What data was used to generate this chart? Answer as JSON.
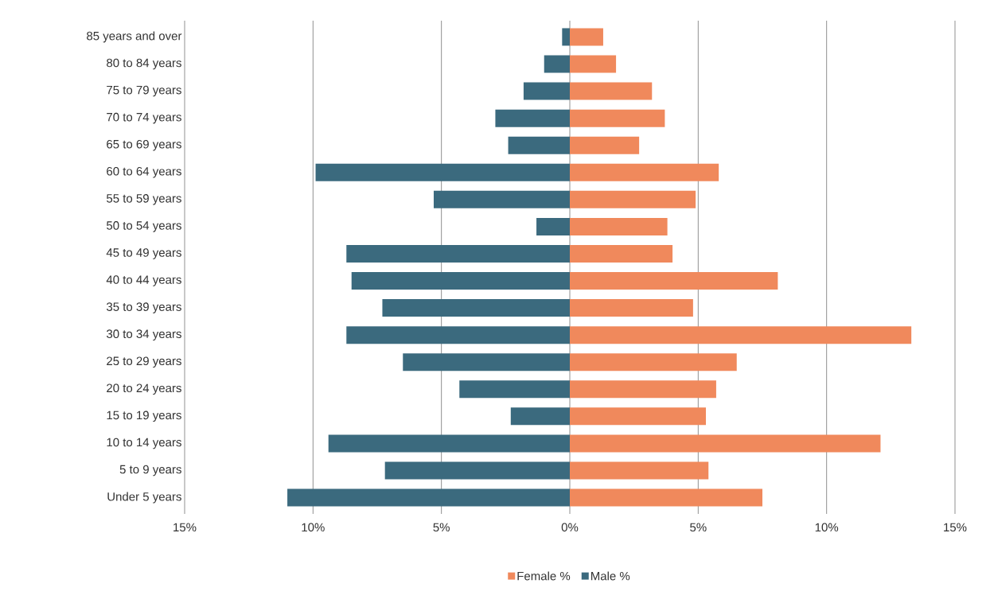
{
  "chart_data": {
    "type": "bar",
    "orientation": "horizontal",
    "categories": [
      "85 years and over",
      "80 to 84 years",
      "75 to 79 years",
      "70 to 74 years",
      "65 to 69 years",
      "60 to 64 years",
      "55 to 59 years",
      "50 to 54 years",
      "45 to 49 years",
      "40 to 44 years",
      "35 to 39 years",
      "30 to 34 years",
      "25 to 29 years",
      "20 to 24 years",
      "15 to 19 years",
      "10 to 14 years",
      "5 to 9 years",
      "Under 5 years"
    ],
    "series": [
      {
        "name": "Female %",
        "color": "#f0895c",
        "values": [
          1.3,
          1.8,
          3.2,
          3.7,
          2.7,
          5.8,
          4.9,
          3.8,
          4.0,
          8.1,
          4.8,
          13.3,
          6.5,
          5.7,
          5.3,
          12.1,
          5.4,
          7.5
        ]
      },
      {
        "name": "Male %",
        "color": "#3b6a7e",
        "values": [
          -0.3,
          -1.0,
          -1.8,
          -2.9,
          -2.4,
          -9.9,
          -5.3,
          -1.3,
          -8.7,
          -8.5,
          -7.3,
          -8.7,
          -6.5,
          -4.3,
          -2.3,
          -9.4,
          -7.2,
          -11.0
        ]
      }
    ],
    "xlim": [
      -15,
      15
    ],
    "xticks": [
      {
        "value": -15,
        "label": "15%"
      },
      {
        "value": -10,
        "label": "10%"
      },
      {
        "value": -5,
        "label": "5%"
      },
      {
        "value": 0,
        "label": "0%"
      },
      {
        "value": 5,
        "label": "5%"
      },
      {
        "value": 10,
        "label": "10%"
      },
      {
        "value": 15,
        "label": "15%"
      }
    ],
    "grid": "x",
    "legend": "bottom",
    "stacked": true
  }
}
